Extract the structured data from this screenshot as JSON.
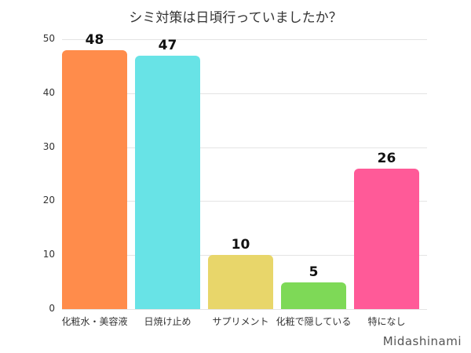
{
  "chart_data": {
    "type": "bar",
    "title": "シミ対策は日頃行っていましたか？",
    "categories": [
      "化粧水・美容液",
      "日焼け止め",
      "サプリメント",
      "化粧で隠している",
      "特になし"
    ],
    "values": [
      48,
      47,
      10,
      5,
      26
    ],
    "colors": [
      "#FF8C4B",
      "#68E3E6",
      "#E8D66A",
      "#7ED957",
      "#FF5A98"
    ],
    "xlabel": "",
    "ylabel": "",
    "ylim": [
      0,
      50
    ],
    "yticks": [
      0,
      10,
      20,
      30,
      40,
      50
    ],
    "grid": true,
    "legend": "none",
    "data_labels": true
  },
  "watermark": "Midashinami"
}
